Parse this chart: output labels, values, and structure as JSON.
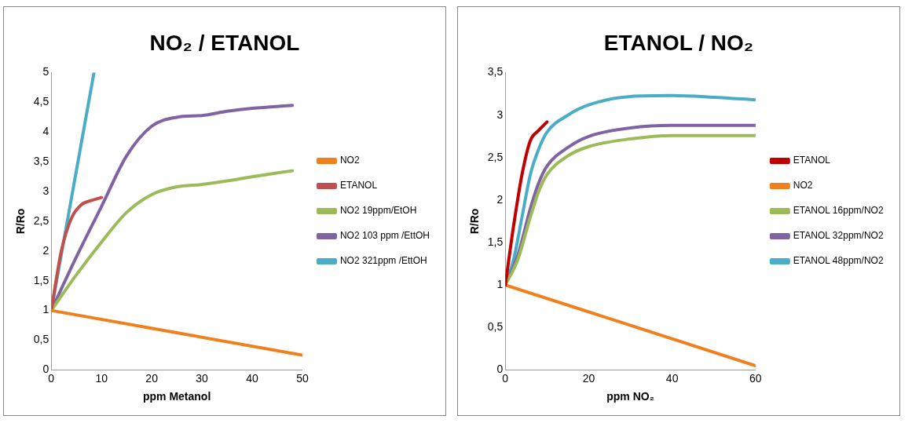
{
  "chart_data": [
    {
      "type": "line",
      "title": "NO₂ / ETANOL",
      "xlabel": "ppm Metanol",
      "ylabel": "R/Ro",
      "xlim": [
        0,
        50
      ],
      "xticks": [
        0,
        10,
        20,
        30,
        40,
        50
      ],
      "ylim": [
        0,
        5
      ],
      "yticks": [
        0,
        {
          "value": 0.5,
          "label": "0,5"
        },
        1,
        {
          "value": 1.5,
          "label": "1,5"
        },
        2,
        {
          "value": 2.5,
          "label": "2,5"
        },
        3,
        {
          "value": 3.5,
          "label": "3,5"
        },
        4,
        {
          "value": 4.5,
          "label": "4,5"
        },
        5
      ],
      "grid": false,
      "legend": "right",
      "marker": "none",
      "series": [
        {
          "name": "NO2",
          "color": "#f07f1e",
          "x": [
            0,
            50
          ],
          "values": [
            1,
            0.25
          ]
        },
        {
          "name": "ETANOL",
          "color": "#c0504d",
          "x": [
            0,
            2,
            4,
            6,
            8,
            10
          ],
          "values": [
            1,
            2,
            2.55,
            2.78,
            2.85,
            2.9
          ]
        },
        {
          "name": "NO2 19ppm/EtOH",
          "color": "#9bbb59",
          "x": [
            0,
            5,
            10,
            15,
            20,
            25,
            30,
            35,
            40,
            48
          ],
          "values": [
            1,
            1.6,
            2.15,
            2.65,
            2.95,
            3.08,
            3.12,
            3.18,
            3.25,
            3.35
          ]
        },
        {
          "name": "NO2 103 ppm /EttOH",
          "color": "#8064a2",
          "x": [
            0,
            5,
            10,
            15,
            20,
            25,
            30,
            35,
            40,
            48
          ],
          "values": [
            1,
            1.9,
            2.75,
            3.6,
            4.1,
            4.25,
            4.28,
            4.35,
            4.4,
            4.45
          ]
        },
        {
          "name": "NO2 321ppm /EttOH",
          "color": "#4bacc6",
          "x": [
            0,
            8.5
          ],
          "values": [
            1,
            5
          ]
        }
      ]
    },
    {
      "type": "line",
      "title": "ETANOL / NO₂",
      "xlabel": "ppm NO₂",
      "ylabel": "R/Ro",
      "xlim": [
        0,
        60
      ],
      "xticks": [
        0,
        20,
        40,
        60
      ],
      "ylim": [
        0,
        3.5
      ],
      "yticks": [
        0,
        {
          "value": 0.5,
          "label": "0,5"
        },
        1,
        {
          "value": 1.5,
          "label": "1,5"
        },
        2,
        {
          "value": 2.5,
          "label": "2,5"
        },
        3,
        {
          "value": 3.5,
          "label": "3,5"
        }
      ],
      "grid": false,
      "legend": "right",
      "marker": "none",
      "series": [
        {
          "name": "ETANOL",
          "color": "#c00000",
          "x": [
            0,
            2,
            4,
            6,
            8,
            10
          ],
          "values": [
            1,
            1.7,
            2.3,
            2.7,
            2.82,
            2.92
          ]
        },
        {
          "name": "NO2",
          "color": "#f07f1e",
          "x": [
            0,
            60
          ],
          "values": [
            1,
            0.05
          ]
        },
        {
          "name": "ETANOL 16ppm/NO2",
          "color": "#9bbb59",
          "x": [
            0,
            3,
            6,
            8,
            10,
            15,
            20,
            30,
            40,
            60
          ],
          "values": [
            1,
            1.3,
            1.8,
            2.1,
            2.3,
            2.52,
            2.63,
            2.72,
            2.76,
            2.76
          ]
        },
        {
          "name": "ETANOL 32ppm/NO2",
          "color": "#8064a2",
          "x": [
            0,
            3,
            6,
            8,
            10,
            15,
            20,
            30,
            40,
            60
          ],
          "values": [
            1,
            1.35,
            1.9,
            2.2,
            2.4,
            2.62,
            2.75,
            2.85,
            2.88,
            2.88
          ]
        },
        {
          "name": "ETANOL 48ppm/NO2",
          "color": "#4bacc6",
          "x": [
            0,
            2,
            4,
            6,
            8,
            10,
            15,
            20,
            30,
            40,
            50,
            60
          ],
          "values": [
            1,
            1.3,
            1.8,
            2.3,
            2.6,
            2.8,
            3,
            3.12,
            3.22,
            3.23,
            3.21,
            3.18
          ]
        }
      ]
    }
  ]
}
